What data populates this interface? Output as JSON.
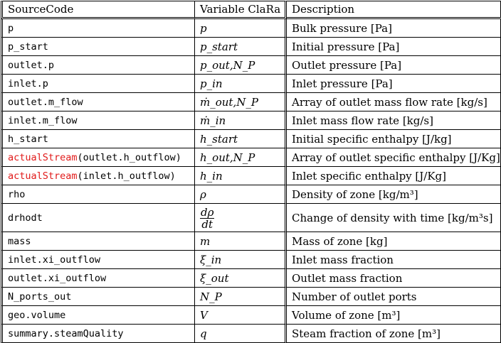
{
  "header": {
    "source": "SourceCode",
    "variable": "Variable ClaRa",
    "description": "Description"
  },
  "rows": [
    {
      "code": "p",
      "variable": "p",
      "description": "Bulk pressure [Pa]"
    },
    {
      "code": "p_start",
      "variable": "p_start",
      "description": "Initial pressure [Pa]"
    },
    {
      "code": "outlet.p",
      "variable": "p_out,N_P",
      "description": "Outlet pressure [Pa]"
    },
    {
      "code": "inlet.p",
      "variable": "p_in",
      "description": "Inlet pressure [Pa]"
    },
    {
      "code": "outlet.m_flow",
      "variable": "ṁ_out,N_P",
      "description": "Array of outlet mass flow rate [kg/s]"
    },
    {
      "code": "inlet.m_flow",
      "variable": "ṁ_in",
      "description": "Inlet mass flow rate [kg/s]"
    },
    {
      "code": "h_start",
      "variable": "h_start",
      "description": "Initial specific enthalpy [J/kg]"
    },
    {
      "code_fn": "actualStream",
      "code_arg": "(outlet.h_outflow)",
      "variable": "h_out,N_P",
      "description": "Array of outlet specific enthalpy [J/Kg]"
    },
    {
      "code_fn": "actualStream",
      "code_arg": "(inlet.h_outflow)",
      "variable": "h_in",
      "description": "Inlet specific enthalpy [J/Kg]"
    },
    {
      "code": "rho",
      "variable": "ρ",
      "description": "Density of zone [kg/m³]"
    },
    {
      "code": "drhodt",
      "variable_num": "dρ",
      "variable_den": "dt",
      "description": "Change of density with time [kg/m³s]"
    },
    {
      "code": "mass",
      "variable": "m",
      "description": "Mass of zone [kg]"
    },
    {
      "code": "inlet.xi_outflow",
      "variable": "ξ_in",
      "description": "Inlet mass fraction"
    },
    {
      "code": "outlet.xi_outflow",
      "variable": "ξ_out",
      "description": "Outlet mass fraction"
    },
    {
      "code": "N_ports_out",
      "variable": "N_P",
      "description": "Number of outlet ports"
    },
    {
      "code": "geo.volume",
      "variable": "V",
      "description": "Volume of zone [m³]"
    },
    {
      "code": "summary.steamQuality",
      "variable": "q",
      "description": "Steam fraction of zone [m³]"
    }
  ],
  "colors": {
    "function_name": "#e11a1a",
    "text": "#000000",
    "background": "#ffffff"
  }
}
